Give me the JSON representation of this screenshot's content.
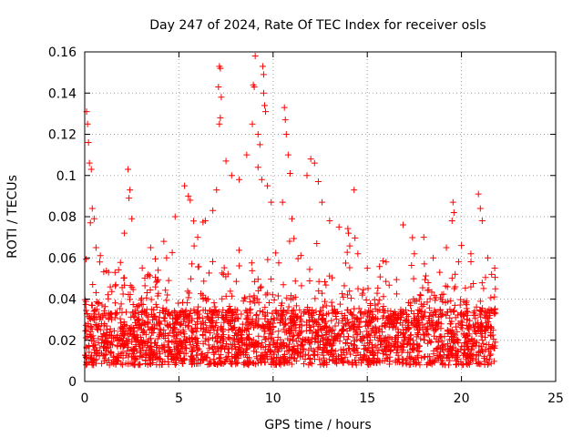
{
  "chart_data": {
    "type": "scatter",
    "title": "Day 247 of 2024, Rate Of TEC Index for receiver osls",
    "xlabel": "GPS time / hours",
    "ylabel": "ROTI / TECUs",
    "xlim": [
      0,
      25
    ],
    "ylim": [
      0,
      0.16
    ],
    "x_ticks": [
      0,
      5,
      10,
      15,
      20,
      25
    ],
    "x_tick_labels": [
      "0",
      "5",
      "10",
      "15",
      "20",
      "25"
    ],
    "y_ticks": [
      0,
      0.02,
      0.04,
      0.06,
      0.08,
      0.1,
      0.12,
      0.14,
      0.16
    ],
    "y_tick_labels": [
      "0",
      "0.02",
      "0.04",
      "0.06",
      "0.08",
      "0.1",
      "0.12",
      "0.14",
      "0.16"
    ],
    "grid": true,
    "marker": "+",
    "marker_color": "#ff0000",
    "data_range_x": [
      0,
      21.8
    ],
    "baseline_band": [
      0.008,
      0.035
    ],
    "series": [
      {
        "name": "ROTI",
        "points": [
          [
            0.1,
            0.131
          ],
          [
            0.15,
            0.125
          ],
          [
            0.2,
            0.116
          ],
          [
            0.25,
            0.106
          ],
          [
            0.35,
            0.103
          ],
          [
            0.4,
            0.084
          ],
          [
            0.3,
            0.077
          ],
          [
            0.5,
            0.079
          ],
          [
            0.6,
            0.065
          ],
          [
            0.8,
            0.058
          ],
          [
            2.3,
            0.103
          ],
          [
            2.4,
            0.093
          ],
          [
            2.35,
            0.089
          ],
          [
            2.5,
            0.079
          ],
          [
            2.1,
            0.072
          ],
          [
            3.5,
            0.065
          ],
          [
            4.2,
            0.068
          ],
          [
            4.8,
            0.08
          ],
          [
            5.3,
            0.095
          ],
          [
            5.5,
            0.09
          ],
          [
            5.6,
            0.088
          ],
          [
            6.0,
            0.07
          ],
          [
            6.4,
            0.078
          ],
          [
            6.8,
            0.083
          ],
          [
            7.0,
            0.093
          ],
          [
            7.15,
            0.153
          ],
          [
            7.2,
            0.152
          ],
          [
            7.1,
            0.143
          ],
          [
            7.25,
            0.138
          ],
          [
            7.2,
            0.128
          ],
          [
            7.15,
            0.125
          ],
          [
            7.5,
            0.107
          ],
          [
            7.8,
            0.1
          ],
          [
            8.2,
            0.098
          ],
          [
            8.6,
            0.11
          ],
          [
            8.9,
            0.125
          ],
          [
            9.05,
            0.158
          ],
          [
            8.95,
            0.144
          ],
          [
            9.0,
            0.143
          ],
          [
            9.2,
            0.12
          ],
          [
            9.3,
            0.115
          ],
          [
            9.45,
            0.153
          ],
          [
            9.5,
            0.149
          ],
          [
            9.5,
            0.14
          ],
          [
            9.55,
            0.134
          ],
          [
            9.6,
            0.131
          ],
          [
            9.2,
            0.104
          ],
          [
            9.4,
            0.098
          ],
          [
            9.7,
            0.095
          ],
          [
            9.9,
            0.087
          ],
          [
            10.6,
            0.133
          ],
          [
            10.65,
            0.127
          ],
          [
            10.7,
            0.12
          ],
          [
            10.8,
            0.11
          ],
          [
            10.9,
            0.101
          ],
          [
            10.5,
            0.087
          ],
          [
            11.0,
            0.079
          ],
          [
            11.8,
            0.1
          ],
          [
            12.0,
            0.108
          ],
          [
            12.2,
            0.106
          ],
          [
            12.4,
            0.097
          ],
          [
            12.6,
            0.087
          ],
          [
            13.0,
            0.078
          ],
          [
            13.5,
            0.075
          ],
          [
            14.0,
            0.072
          ],
          [
            14.3,
            0.093
          ],
          [
            14.5,
            0.062
          ],
          [
            15.0,
            0.055
          ],
          [
            16.0,
            0.058
          ],
          [
            16.9,
            0.076
          ],
          [
            17.5,
            0.062
          ],
          [
            18.0,
            0.07
          ],
          [
            18.5,
            0.06
          ],
          [
            19.2,
            0.065
          ],
          [
            19.5,
            0.078
          ],
          [
            19.55,
            0.087
          ],
          [
            19.6,
            0.082
          ],
          [
            20.0,
            0.066
          ],
          [
            20.5,
            0.062
          ],
          [
            20.9,
            0.091
          ],
          [
            21.0,
            0.084
          ],
          [
            21.1,
            0.078
          ],
          [
            21.4,
            0.06
          ],
          [
            21.6,
            0.052
          ],
          [
            21.8,
            0.045
          ]
        ]
      }
    ]
  }
}
